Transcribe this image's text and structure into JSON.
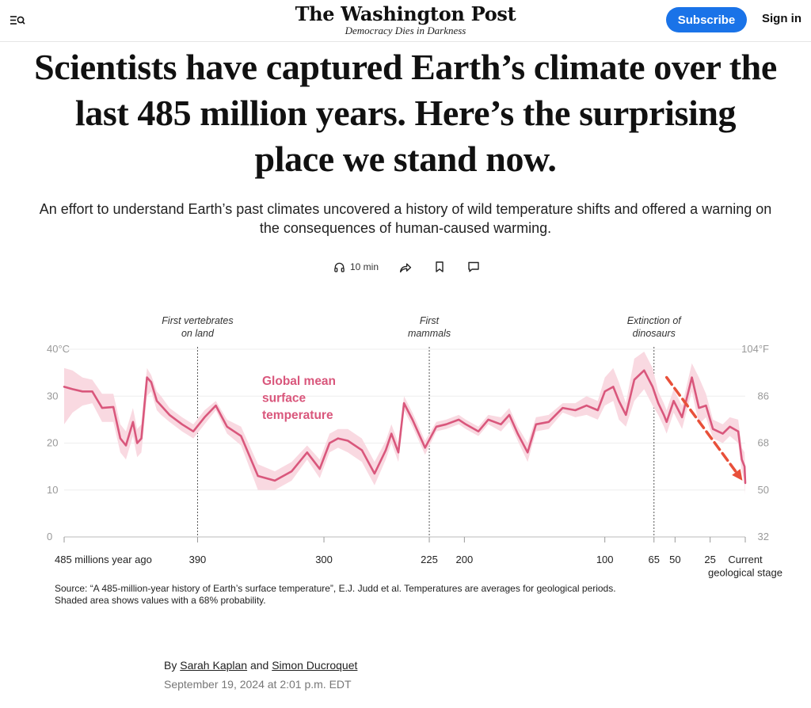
{
  "header": {
    "logo": "The Washington Post",
    "tagline": "Democracy Dies in Darkness",
    "subscribe_label": "Subscribe",
    "signin_label": "Sign in"
  },
  "article": {
    "headline": "Scientists have captured Earth’s climate over the last 485 million years. Here’s the surprising place we stand now.",
    "dek": "An effort to understand Earth’s past climates uncovered a history of wild temperature shifts and offered a warning on the consequences of human-caused warming.",
    "listen_label": "10 min",
    "byline_prefix": "By",
    "author1": "Sarah Kaplan",
    "byline_and": "and",
    "author2": "Simon Ducroquet",
    "date": "September 19, 2024 at 2:01 p.m. EDT"
  },
  "chart_data": {
    "type": "line",
    "series": [
      {
        "name": "Global mean surface temperature",
        "x": [
          485,
          479,
          472,
          465,
          458,
          450,
          445,
          441,
          436,
          433,
          430,
          426,
          423,
          419,
          416,
          410,
          401,
          393,
          385,
          377,
          369,
          359,
          347,
          335,
          323,
          312,
          303,
          296,
          290,
          283,
          273,
          264,
          256,
          252,
          247,
          243,
          237,
          228,
          220,
          213,
          204,
          199,
          190,
          183,
          174,
          168,
          162,
          155,
          149,
          140,
          130,
          121,
          113,
          105,
          100,
          94,
          90,
          85,
          79,
          72,
          66,
          62,
          58,
          56,
          51,
          45,
          38,
          33,
          28,
          23,
          16,
          11,
          5,
          2.5,
          0.5,
          0
        ],
        "values": [
          32,
          31.5,
          31,
          31,
          27.5,
          27.7,
          21,
          19.5,
          24.5,
          20,
          21,
          34,
          33,
          29,
          28,
          26,
          24,
          22.5,
          25.5,
          28,
          23.5,
          21.5,
          13,
          12,
          14,
          18,
          14.5,
          20,
          21,
          20.5,
          18.5,
          13.5,
          18.5,
          22,
          18,
          28.5,
          25,
          19,
          23.5,
          24,
          25,
          24,
          22.5,
          25,
          24,
          26,
          22,
          18,
          24,
          24.5,
          27.5,
          27,
          28,
          27,
          31,
          32,
          29,
          26,
          33.5,
          35.5,
          32,
          28.5,
          26,
          24.5,
          29,
          25.5,
          34,
          27.5,
          28,
          23,
          22,
          23.5,
          22.5,
          16.5,
          15,
          11.5
        ]
      }
    ],
    "band": {
      "name": "Shaded area shows values with a 68% probability",
      "x": [
        485,
        479,
        472,
        465,
        458,
        450,
        445,
        441,
        436,
        433,
        430,
        426,
        423,
        419,
        416,
        410,
        401,
        393,
        385,
        377,
        369,
        359,
        347,
        335,
        323,
        312,
        303,
        296,
        290,
        283,
        273,
        264,
        256,
        252,
        247,
        243,
        237,
        228,
        220,
        213,
        204,
        199,
        190,
        183,
        174,
        168,
        162,
        155,
        149,
        140,
        130,
        121,
        113,
        105,
        100,
        94,
        90,
        85,
        79,
        72,
        66,
        62,
        58,
        56,
        51,
        45,
        38,
        33,
        28,
        23,
        16,
        11,
        5,
        2.5,
        0.5,
        0
      ],
      "upper": [
        36,
        35.5,
        34,
        33.5,
        30.5,
        30.5,
        24,
        22.5,
        27.5,
        23,
        24,
        36,
        34.5,
        31,
        30,
        27.5,
        25.5,
        24,
        27,
        29,
        25,
        23.5,
        15.5,
        14,
        16,
        19.5,
        16.5,
        22,
        23,
        23,
        21,
        16,
        20.5,
        24,
        20,
        30,
        26.5,
        20.5,
        24.5,
        25,
        26,
        25,
        23.5,
        26,
        25.5,
        27.5,
        23.5,
        20,
        25.5,
        26,
        28.5,
        28.5,
        30,
        29,
        34,
        36,
        33,
        28.5,
        38,
        39.5,
        36,
        31,
        28.5,
        27,
        31.5,
        28,
        37,
        34,
        30.5,
        25,
        24,
        25.5,
        25,
        19,
        18,
        14
      ],
      "lower": [
        24,
        26.5,
        28,
        28.5,
        24.5,
        24.5,
        18,
        16.5,
        21.5,
        17,
        18,
        30,
        31,
        27,
        26,
        24.5,
        22.5,
        21,
        24,
        27,
        22,
        19.5,
        10,
        10,
        12,
        16.5,
        12.5,
        18,
        19,
        18,
        16,
        11,
        16.5,
        20,
        16,
        27,
        23.5,
        17.5,
        22.5,
        23,
        24,
        23,
        21.5,
        24,
        22.5,
        24.5,
        20.5,
        16,
        22.5,
        23,
        26.5,
        25.5,
        26,
        25,
        28,
        29,
        25,
        23.5,
        29,
        31.5,
        28,
        26,
        23.5,
        22,
        26.5,
        23,
        31,
        24,
        25.5,
        21,
        20,
        21.5,
        20,
        14,
        12,
        9
      ]
    },
    "xlabel": "",
    "ylabel": "",
    "x_reversed": true,
    "xlim": [
      485,
      0
    ],
    "ylim": [
      0,
      40
    ],
    "y_ticks": [
      0,
      10,
      20,
      30,
      40
    ],
    "y_tick_labels": [
      "0",
      "10",
      "20",
      "30",
      "40°C"
    ],
    "y2_ticks": [
      0,
      10,
      20,
      30,
      40
    ],
    "y2_tick_labels": [
      "32",
      "50",
      "68",
      "86",
      "104°F"
    ],
    "x_ticks": [
      485,
      390,
      300,
      225,
      200,
      100,
      65,
      50,
      25,
      0
    ],
    "x_tick_labels": [
      "485 millions year ago",
      "390",
      "300",
      "225",
      "200",
      "100",
      "65",
      "50",
      "25",
      "Current geological stage"
    ],
    "grid": true,
    "annotations": [
      {
        "x": 390,
        "text": "First vertebrates on land"
      },
      {
        "x": 225,
        "text": "First mammals"
      },
      {
        "x": 65,
        "text": "Extinction of dinosaurs"
      }
    ],
    "series_label": "Global mean surface temperature",
    "trend_arrow": {
      "from": [
        56,
        34
      ],
      "to": [
        2,
        12
      ],
      "color": "#e8503a"
    },
    "colors": {
      "line": "#d9577c",
      "band": "#f9d9e1",
      "arrow": "#e8503a"
    },
    "source": "Source: “A 485-million-year history of Earth’s surface temperature”, E.J. Judd et al. Temperatures are averages for geological periods. Shaded area shows values with a 68% probability."
  }
}
